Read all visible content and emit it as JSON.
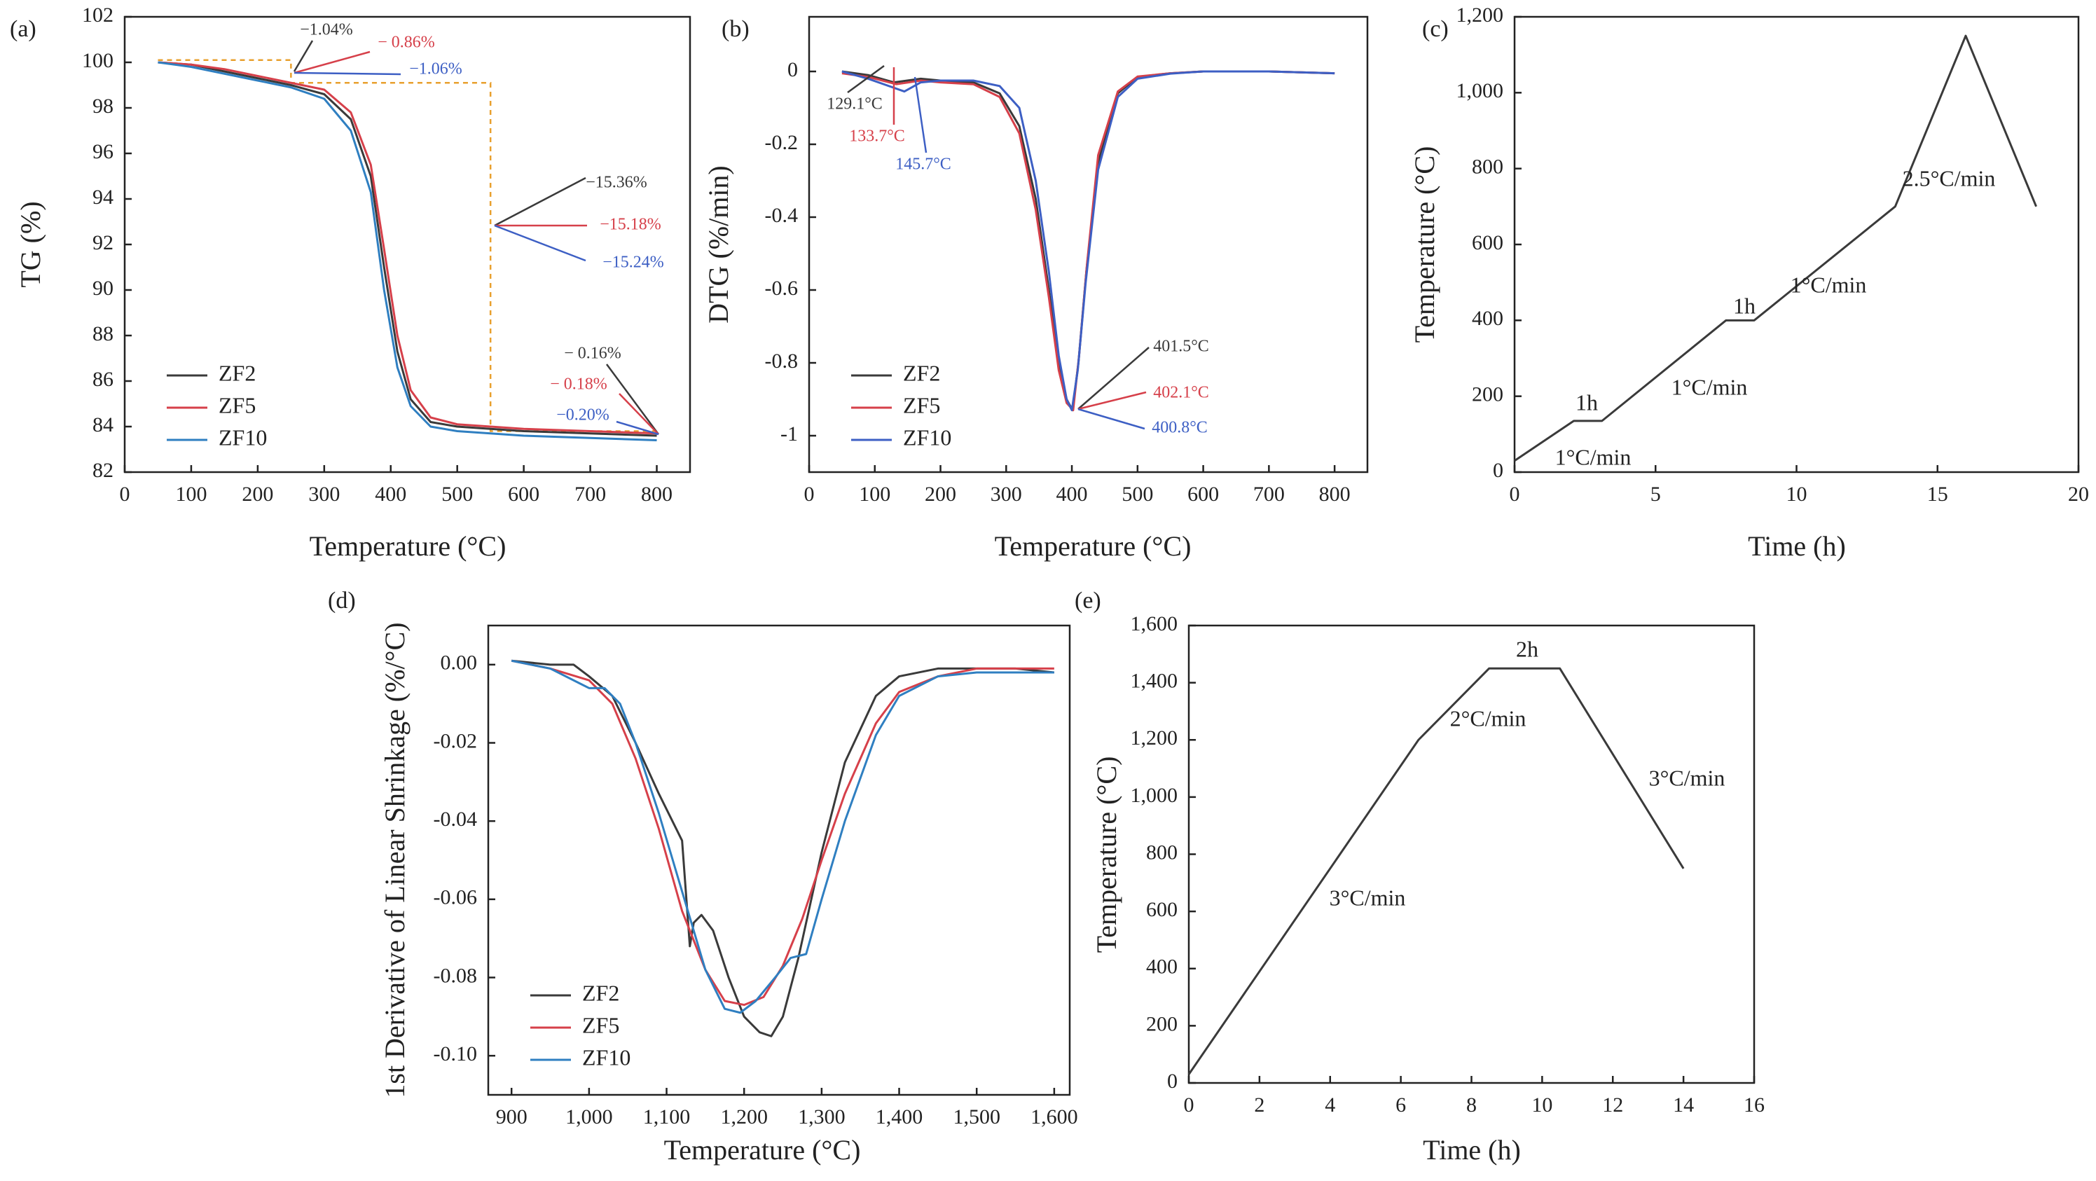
{
  "colors": {
    "black": "#3a3a3a",
    "red": "#d6404a",
    "blue": "#3d5fc4",
    "tealblue": "#2f7fc1",
    "orange": "#e8a02e"
  },
  "chart_data": [
    {
      "panel": "(a)",
      "type": "line",
      "xlabel": "Temperature (°C)",
      "ylabel": "TG (%)",
      "xlim": [
        0,
        850
      ],
      "ylim": [
        82,
        102
      ],
      "xticks": [
        0,
        100,
        200,
        300,
        400,
        500,
        600,
        700,
        800
      ],
      "yticks": [
        82,
        84,
        86,
        88,
        90,
        92,
        94,
        96,
        98,
        100,
        102
      ],
      "legend": {
        "position": "bottom-left",
        "entries": [
          "ZF2",
          "ZF5",
          "ZF10"
        ]
      },
      "series": [
        {
          "name": "ZF2",
          "color": "#3a3a3a",
          "x": [
            50,
            100,
            150,
            200,
            250,
            300,
            340,
            370,
            390,
            410,
            430,
            460,
            500,
            550,
            600,
            700,
            800
          ],
          "y": [
            100,
            99.9,
            99.6,
            99.3,
            99.0,
            98.6,
            97.5,
            95.0,
            91.0,
            87.3,
            85.2,
            84.2,
            84.0,
            83.9,
            83.8,
            83.7,
            83.6
          ]
        },
        {
          "name": "ZF5",
          "color": "#d6404a",
          "x": [
            50,
            100,
            150,
            200,
            250,
            300,
            340,
            370,
            390,
            410,
            430,
            460,
            500,
            550,
            600,
            700,
            800
          ],
          "y": [
            100,
            99.9,
            99.7,
            99.4,
            99.1,
            98.8,
            97.8,
            95.5,
            91.8,
            88.0,
            85.6,
            84.4,
            84.1,
            84.0,
            83.9,
            83.8,
            83.7
          ]
        },
        {
          "name": "ZF10",
          "color": "#2f7fc1",
          "x": [
            50,
            100,
            150,
            200,
            250,
            300,
            340,
            370,
            390,
            410,
            430,
            460,
            500,
            550,
            600,
            700,
            800
          ],
          "y": [
            100,
            99.8,
            99.5,
            99.2,
            98.9,
            98.4,
            97.0,
            94.3,
            90.0,
            86.6,
            84.9,
            84.0,
            83.8,
            83.7,
            83.6,
            83.5,
            83.4
          ]
        }
      ],
      "annotations": [
        {
          "text": "−1.04%",
          "color": "#3a3a3a"
        },
        {
          "text": "− 0.86%",
          "color": "#d6404a"
        },
        {
          "text": "−1.06%",
          "color": "#3d5fc4"
        },
        {
          "text": "−15.36%",
          "color": "#3a3a3a"
        },
        {
          "text": "−15.18%",
          "color": "#d6404a"
        },
        {
          "text": "−15.24%",
          "color": "#3d5fc4"
        },
        {
          "text": "− 0.16%",
          "color": "#3a3a3a"
        },
        {
          "text": "− 0.18%",
          "color": "#d6404a"
        },
        {
          "text": "−0.20%",
          "color": "#3d5fc4"
        }
      ]
    },
    {
      "panel": "(b)",
      "type": "line",
      "xlabel": "Temperature (°C)",
      "ylabel": "DTG (%/min)",
      "xlim": [
        0,
        850
      ],
      "ylim": [
        -1.1,
        0.15
      ],
      "xticks": [
        0,
        100,
        200,
        300,
        400,
        500,
        600,
        700,
        800
      ],
      "yticks": [
        0.0,
        -0.2,
        -0.4,
        -0.6,
        -0.8,
        -1.0
      ],
      "legend": {
        "position": "bottom-left",
        "entries": [
          "ZF2",
          "ZF5",
          "ZF10"
        ]
      },
      "series": [
        {
          "name": "ZF2",
          "color": "#3a3a3a",
          "x": [
            50,
            90,
            129,
            170,
            200,
            250,
            290,
            320,
            345,
            365,
            380,
            392,
            401,
            410,
            422,
            440,
            470,
            500,
            550,
            600,
            700,
            800
          ],
          "y": [
            0.0,
            -0.01,
            -0.03,
            -0.02,
            -0.025,
            -0.03,
            -0.06,
            -0.15,
            -0.35,
            -0.6,
            -0.8,
            -0.9,
            -0.93,
            -0.8,
            -0.55,
            -0.25,
            -0.06,
            -0.015,
            -0.005,
            0.0,
            0.0,
            -0.005
          ]
        },
        {
          "name": "ZF5",
          "color": "#d6404a",
          "x": [
            50,
            90,
            133,
            170,
            200,
            250,
            290,
            320,
            345,
            365,
            380,
            392,
            402,
            411,
            423,
            440,
            470,
            500,
            550,
            600,
            700,
            800
          ],
          "y": [
            -0.005,
            -0.015,
            -0.035,
            -0.025,
            -0.03,
            -0.035,
            -0.07,
            -0.17,
            -0.38,
            -0.62,
            -0.82,
            -0.91,
            -0.93,
            -0.78,
            -0.53,
            -0.23,
            -0.055,
            -0.014,
            -0.005,
            0.0,
            0.0,
            -0.005
          ]
        },
        {
          "name": "ZF10",
          "color": "#3d5fc4",
          "x": [
            50,
            90,
            145,
            170,
            200,
            250,
            290,
            320,
            345,
            365,
            380,
            392,
            400,
            409,
            421,
            440,
            470,
            500,
            550,
            600,
            700,
            800
          ],
          "y": [
            0.0,
            -0.02,
            -0.055,
            -0.03,
            -0.025,
            -0.025,
            -0.04,
            -0.1,
            -0.3,
            -0.55,
            -0.78,
            -0.9,
            -0.93,
            -0.82,
            -0.58,
            -0.27,
            -0.07,
            -0.02,
            -0.006,
            0.0,
            0.0,
            -0.005
          ]
        }
      ],
      "annotations": [
        {
          "text": "129.1°C",
          "color": "#3a3a3a"
        },
        {
          "text": "133.7°C",
          "color": "#d6404a"
        },
        {
          "text": "145.7°C",
          "color": "#3d5fc4"
        },
        {
          "text": "401.5°C",
          "color": "#3a3a3a"
        },
        {
          "text": "402.1°C",
          "color": "#d6404a"
        },
        {
          "text": "400.8°C",
          "color": "#3d5fc4"
        }
      ]
    },
    {
      "panel": "(c)",
      "type": "line",
      "xlabel": "Time (h)",
      "ylabel": "Temperature (°C)",
      "xlim": [
        0,
        20
      ],
      "ylim": [
        0,
        1200
      ],
      "xticks": [
        0,
        5,
        10,
        15,
        20
      ],
      "yticks": [
        0,
        200,
        400,
        600,
        800,
        1000,
        1200
      ],
      "ytick_labels": [
        "0",
        "200",
        "400",
        "600",
        "800",
        "1,000",
        "1,200"
      ],
      "series": [
        {
          "color": "#3a3a3a",
          "x": [
            0,
            2.1,
            3.1,
            7.5,
            8.5,
            13.5,
            16,
            18.5
          ],
          "y": [
            30,
            135,
            135,
            400,
            400,
            700,
            1150,
            700
          ]
        }
      ],
      "annotations": [
        {
          "text": "1°C/min"
        },
        {
          "text": "1h"
        },
        {
          "text": "1°C/min"
        },
        {
          "text": "1h"
        },
        {
          "text": "1°C/min"
        },
        {
          "text": "2.5°C/min"
        }
      ]
    },
    {
      "panel": "(d)",
      "type": "line",
      "xlabel": "Temperature (°C)",
      "ylabel": "1st Derivative of Linear Shrinkage (%/°C)",
      "xlim": [
        870,
        1620
      ],
      "ylim": [
        -0.11,
        0.01
      ],
      "xticks": [
        900,
        1000,
        1100,
        1200,
        1300,
        1400,
        1500,
        1600
      ],
      "xtick_labels": [
        "900",
        "1,000",
        "1,100",
        "1,200",
        "1,300",
        "1,400",
        "1,500",
        "1,600"
      ],
      "yticks": [
        0.0,
        -0.02,
        -0.04,
        -0.06,
        -0.08,
        -0.1
      ],
      "ytick_labels": [
        "0.00",
        "-0.02",
        "-0.04",
        "-0.06",
        "-0.08",
        "-0.10"
      ],
      "legend": {
        "position": "bottom-left",
        "entries": [
          "ZF2",
          "ZF5",
          "ZF10"
        ]
      },
      "series": [
        {
          "name": "ZF2",
          "color": "#3a3a3a",
          "x": [
            900,
            950,
            980,
            1000,
            1030,
            1060,
            1090,
            1120,
            1130,
            1135,
            1145,
            1160,
            1180,
            1200,
            1220,
            1235,
            1250,
            1270,
            1300,
            1330,
            1370,
            1400,
            1450,
            1500,
            1550,
            1600
          ],
          "y": [
            0.001,
            0.0,
            0.0,
            -0.003,
            -0.008,
            -0.02,
            -0.033,
            -0.045,
            -0.072,
            -0.066,
            -0.064,
            -0.068,
            -0.08,
            -0.09,
            -0.094,
            -0.095,
            -0.09,
            -0.075,
            -0.048,
            -0.025,
            -0.008,
            -0.003,
            -0.001,
            -0.001,
            -0.001,
            -0.002
          ]
        },
        {
          "name": "ZF5",
          "color": "#d6404a",
          "x": [
            900,
            950,
            1000,
            1030,
            1060,
            1090,
            1120,
            1150,
            1175,
            1200,
            1225,
            1250,
            1275,
            1300,
            1330,
            1370,
            1400,
            1450,
            1500,
            1550,
            1600
          ],
          "y": [
            0.001,
            -0.001,
            -0.004,
            -0.01,
            -0.024,
            -0.042,
            -0.063,
            -0.078,
            -0.086,
            -0.087,
            -0.085,
            -0.077,
            -0.065,
            -0.05,
            -0.033,
            -0.015,
            -0.007,
            -0.003,
            -0.001,
            -0.001,
            -0.001
          ]
        },
        {
          "name": "ZF10",
          "color": "#2f7fc1",
          "x": [
            900,
            950,
            990,
            1000,
            1020,
            1040,
            1060,
            1090,
            1120,
            1150,
            1175,
            1195,
            1215,
            1240,
            1260,
            1280,
            1300,
            1330,
            1370,
            1400,
            1450,
            1500,
            1550,
            1600
          ],
          "y": [
            0.001,
            -0.001,
            -0.005,
            -0.006,
            -0.006,
            -0.01,
            -0.02,
            -0.038,
            -0.058,
            -0.078,
            -0.088,
            -0.089,
            -0.086,
            -0.08,
            -0.075,
            -0.074,
            -0.06,
            -0.04,
            -0.018,
            -0.008,
            -0.003,
            -0.002,
            -0.002,
            -0.002
          ]
        }
      ]
    },
    {
      "panel": "(e)",
      "type": "line",
      "xlabel": "Time (h)",
      "ylabel": "Temperature (°C)",
      "xlim": [
        0,
        16
      ],
      "ylim": [
        0,
        1600
      ],
      "xticks": [
        0,
        2,
        4,
        6,
        8,
        10,
        12,
        14,
        16
      ],
      "yticks": [
        0,
        200,
        400,
        600,
        800,
        1000,
        1200,
        1400,
        1600
      ],
      "ytick_labels": [
        "0",
        "200",
        "400",
        "600",
        "800",
        "1,000",
        "1,200",
        "1,400",
        "1,600"
      ],
      "series": [
        {
          "color": "#3a3a3a",
          "x": [
            0,
            6.5,
            8.5,
            10.5,
            14
          ],
          "y": [
            30,
            1200,
            1450,
            1450,
            750
          ]
        }
      ],
      "annotations": [
        {
          "text": "3°C/min"
        },
        {
          "text": "2°C/min"
        },
        {
          "text": "2h"
        },
        {
          "text": "3°C/min"
        }
      ]
    }
  ]
}
